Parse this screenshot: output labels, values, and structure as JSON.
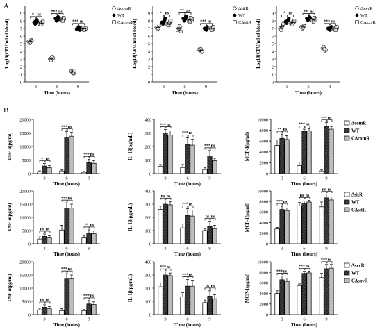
{
  "figure": {
    "panel_labels": [
      "A",
      "B"
    ],
    "colors": {
      "open": "#ffffff",
      "wt": "#000000",
      "comp": "#bdbdbd",
      "ko_marker": "#e6e6e6",
      "comp_marker": "#d9d9d9"
    }
  },
  "chart_data": [
    {
      "type": "scatter",
      "panel": "A",
      "id": "a1",
      "ylabel": "Log10(CFU/ml of blood)",
      "xlabel": "Time (hours)",
      "x": [
        "3",
        "6",
        "9"
      ],
      "ylim": [
        0,
        10
      ],
      "yticks": [
        0,
        1,
        2,
        3,
        4,
        5,
        6,
        7,
        8,
        9
      ],
      "series": [
        {
          "name": "ΔcomR",
          "marker": "open-circle",
          "values": [
            [
              5.3,
              5.5,
              5.1,
              5.4,
              5.2
            ],
            [
              3.0,
              3.3,
              2.8,
              3.1,
              3.2
            ],
            [
              1.4,
              1.1,
              1.3,
              1.5,
              1.2
            ]
          ]
        },
        {
          "name": "WT",
          "marker": "filled-circle",
          "values": [
            [
              7.8,
              8.1,
              7.6,
              7.9,
              8.0
            ],
            [
              8.3,
              8.5,
              8.0,
              8.2,
              8.4
            ],
            [
              6.9,
              7.1,
              7.0,
              6.8,
              7.2
            ]
          ]
        },
        {
          "name": "CΔcomR",
          "marker": "open-square",
          "values": [
            [
              7.6,
              7.8,
              7.7,
              7.9,
              7.5
            ],
            [
              8.2,
              8.4,
              8.1,
              8.3,
              8.0
            ],
            [
              7.0,
              6.9,
              7.1,
              7.0,
              6.8
            ]
          ]
        }
      ],
      "sig": [
        [
          "*",
          "ns"
        ],
        [
          "***",
          "ns"
        ],
        [
          "***",
          "ns"
        ]
      ]
    },
    {
      "type": "scatter",
      "panel": "A",
      "id": "a2",
      "ylabel": "Log10(CFU/ml of blood)",
      "xlabel": "Time (hours)",
      "x": [
        "3",
        "6",
        "9"
      ],
      "ylim": [
        0,
        10
      ],
      "yticks": [
        0,
        1,
        2,
        3,
        4,
        5,
        6,
        7,
        8,
        9
      ],
      "series": [
        {
          "name": "ΔsitR",
          "marker": "open-circle",
          "values": [
            [
              7.1,
              7.3,
              6.9,
              7.4,
              7.0
            ],
            [
              6.8,
              7.2,
              7.0,
              6.6,
              7.3
            ],
            [
              4.2,
              3.9,
              4.4,
              4.0,
              4.3
            ]
          ]
        },
        {
          "name": "WT",
          "marker": "filled-circle",
          "values": [
            [
              7.8,
              8.1,
              7.6,
              8.3,
              7.9
            ],
            [
              8.3,
              8.6,
              8.0,
              8.5,
              8.2
            ],
            [
              7.0,
              7.2,
              6.9,
              7.1,
              6.8
            ]
          ]
        },
        {
          "name": "CΔsitR",
          "marker": "open-square",
          "values": [
            [
              7.6,
              7.9,
              7.4,
              8.0,
              7.7
            ],
            [
              8.0,
              8.3,
              7.9,
              8.2,
              8.4
            ],
            [
              7.1,
              6.9,
              7.0,
              7.2,
              6.8
            ]
          ]
        }
      ],
      "sig": [
        [
          "*",
          "ns"
        ],
        [
          "**",
          "ns"
        ],
        [
          "***",
          "ns"
        ]
      ]
    },
    {
      "type": "scatter",
      "panel": "A",
      "id": "a3",
      "ylabel": "Log10(CFU/ml of blood)",
      "xlabel": "Time (hours)",
      "x": [
        "3",
        "6",
        "9"
      ],
      "ylim": [
        0,
        10
      ],
      "yticks": [
        0,
        1,
        2,
        3,
        4,
        5,
        6,
        7,
        8,
        9
      ],
      "series": [
        {
          "name": "ΔsxvR",
          "marker": "open-circle",
          "values": [
            [
              7.0,
              7.4,
              6.8,
              7.6,
              7.2
            ],
            [
              7.2,
              7.4,
              7.0,
              7.3,
              7.1
            ],
            [
              4.4,
              4.1,
              4.6,
              4.2,
              4.3
            ]
          ]
        },
        {
          "name": "WT",
          "marker": "filled-circle",
          "values": [
            [
              7.9,
              8.1,
              7.7,
              8.3,
              8.0
            ],
            [
              8.3,
              8.5,
              8.1,
              8.4,
              8.2
            ],
            [
              7.0,
              7.1,
              6.9,
              7.2,
              6.8
            ]
          ]
        },
        {
          "name": "CΔsxvR",
          "marker": "open-square",
          "values": [
            [
              7.7,
              7.9,
              7.5,
              8.0,
              7.8
            ],
            [
              8.1,
              8.3,
              7.9,
              8.2,
              8.4
            ],
            [
              7.0,
              7.2,
              6.9,
              7.1,
              6.8
            ]
          ]
        }
      ],
      "sig": [
        [
          "*",
          "ns"
        ],
        [
          "**",
          "ns"
        ],
        [
          "***",
          "ns"
        ]
      ]
    },
    {
      "type": "bar",
      "panel": "B",
      "id": "b11",
      "ylabel": "TNF-α(pg/ml)",
      "xlabel": "Time (hours)",
      "categories": [
        "3",
        "6",
        "9"
      ],
      "ylim": [
        0,
        20000
      ],
      "yticks": [
        0,
        5000,
        10000,
        15000,
        20000
      ],
      "series": [
        {
          "name": "ΔcomR",
          "values": [
            700,
            1000,
            500
          ],
          "errors": [
            300,
            500,
            300
          ]
        },
        {
          "name": "WT",
          "values": [
            2800,
            13500,
            4000
          ],
          "errors": [
            900,
            2000,
            1300
          ]
        },
        {
          "name": "CΔcomR",
          "values": [
            2200,
            13800,
            3800
          ],
          "errors": [
            800,
            1500,
            1000
          ]
        }
      ],
      "sig": [
        [
          "*",
          "ns"
        ],
        [
          "***",
          "ns"
        ],
        [
          "***",
          "ns"
        ]
      ]
    },
    {
      "type": "bar",
      "panel": "B",
      "id": "b12",
      "ylabel": "IL-1β(pg/mL)",
      "xlabel": "Time (hours)",
      "categories": [
        "3",
        "6",
        "9"
      ],
      "ylim": [
        0,
        400
      ],
      "yticks": [
        0,
        100,
        200,
        300,
        400
      ],
      "series": [
        {
          "name": "ΔcomR",
          "values": [
            55,
            45,
            30
          ],
          "errors": [
            12,
            22,
            15
          ]
        },
        {
          "name": "WT",
          "values": [
            300,
            215,
            130
          ],
          "errors": [
            25,
            50,
            40
          ]
        },
        {
          "name": "CΔcomR",
          "values": [
            285,
            210,
            95
          ],
          "errors": [
            30,
            45,
            18
          ]
        }
      ],
      "sig": [
        [
          "***",
          "ns"
        ],
        [
          "***",
          "ns"
        ],
        [
          "***",
          "ns"
        ]
      ]
    },
    {
      "type": "bar",
      "panel": "B",
      "id": "b13",
      "ylabel": "MCP-1(pg/ml)",
      "xlabel": "Time (hours)",
      "categories": [
        "3",
        "6",
        "9"
      ],
      "ylim": [
        0,
        10000
      ],
      "yticks": [
        0,
        2000,
        4000,
        6000,
        8000,
        10000
      ],
      "series": [
        {
          "name": "ΔcomR",
          "values": [
            5200,
            1500,
            500
          ],
          "errors": [
            1000,
            600,
            250
          ]
        },
        {
          "name": "WT",
          "values": [
            6500,
            7800,
            8700
          ],
          "errors": [
            800,
            400,
            700
          ]
        },
        {
          "name": "CΔcomR",
          "values": [
            6300,
            7900,
            8200
          ],
          "errors": [
            700,
            350,
            500
          ]
        }
      ],
      "sig": [
        [
          "**",
          "ns"
        ],
        [
          "***",
          "ns"
        ],
        [
          "***",
          "ns"
        ]
      ]
    },
    {
      "type": "bar",
      "panel": "B",
      "id": "b21",
      "ylabel": "TNF-α(pg/ml)",
      "xlabel": "Time (hours)",
      "categories": [
        "3",
        "6",
        "9"
      ],
      "ylim": [
        0,
        20000
      ],
      "yticks": [
        0,
        5000,
        10000,
        15000,
        20000
      ],
      "series": [
        {
          "name": "ΔsitR",
          "values": [
            1800,
            5200,
            2200
          ],
          "errors": [
            800,
            1800,
            900
          ]
        },
        {
          "name": "WT",
          "values": [
            2800,
            13500,
            4000
          ],
          "errors": [
            900,
            2000,
            1300
          ]
        },
        {
          "name": "CΔsitR",
          "values": [
            2200,
            13500,
            3800
          ],
          "errors": [
            800,
            1500,
            1000
          ]
        }
      ],
      "sig": [
        [
          "ns",
          "ns"
        ],
        [
          "***",
          "ns"
        ],
        [
          "*",
          "ns"
        ]
      ]
    },
    {
      "type": "bar",
      "panel": "B",
      "id": "b22",
      "ylabel": "IL-1β(pg/mL)",
      "xlabel": "Time (hours)",
      "categories": [
        "3",
        "6",
        "9"
      ],
      "ylim": [
        0,
        400
      ],
      "yticks": [
        0,
        100,
        200,
        300,
        400
      ],
      "series": [
        {
          "name": "ΔsitR",
          "values": [
            260,
            120,
            100
          ],
          "errors": [
            25,
            30,
            15
          ]
        },
        {
          "name": "WT",
          "values": [
            300,
            215,
            130
          ],
          "errors": [
            25,
            50,
            40
          ]
        },
        {
          "name": "CΔsitR",
          "values": [
            295,
            210,
            115
          ],
          "errors": [
            25,
            45,
            25
          ]
        }
      ],
      "sig": [
        [
          "ns",
          "ns"
        ],
        [
          "***",
          "ns"
        ],
        [
          "ns",
          "ns"
        ]
      ]
    },
    {
      "type": "bar",
      "panel": "B",
      "id": "b23",
      "ylabel": "MCP-1(pg/ml)",
      "xlabel": "Time (hours)",
      "categories": [
        "3",
        "6",
        "9"
      ],
      "ylim": [
        0,
        10000
      ],
      "yticks": [
        0,
        2000,
        4000,
        6000,
        8000,
        10000
      ],
      "series": [
        {
          "name": "ΔsitR",
          "values": [
            2800,
            7200,
            7000
          ],
          "errors": [
            300,
            600,
            900
          ]
        },
        {
          "name": "WT",
          "values": [
            6500,
            7700,
            8700
          ],
          "errors": [
            600,
            400,
            700
          ]
        },
        {
          "name": "CΔsitR",
          "values": [
            6300,
            7900,
            8300
          ],
          "errors": [
            500,
            350,
            600
          ]
        }
      ],
      "sig": [
        [
          "***",
          "ns"
        ],
        [
          "ns",
          "ns"
        ],
        [
          "ns",
          "ns"
        ]
      ]
    },
    {
      "type": "bar",
      "panel": "B",
      "id": "b31",
      "ylabel": "TNF-α(pg/ml)",
      "xlabel": "Time (hours)",
      "categories": [
        "3",
        "6",
        "9"
      ],
      "ylim": [
        0,
        20000
      ],
      "yticks": [
        0,
        5000,
        10000,
        15000,
        20000
      ],
      "series": [
        {
          "name": "ΔsxvR",
          "values": [
            1800,
            1500,
            1500
          ],
          "errors": [
            600,
            700,
            400
          ]
        },
        {
          "name": "WT",
          "values": [
            2800,
            13500,
            4000
          ],
          "errors": [
            900,
            2000,
            1300
          ]
        },
        {
          "name": "CΔsxvR",
          "values": [
            2200,
            13500,
            3800
          ],
          "errors": [
            800,
            1500,
            1000
          ]
        }
      ],
      "sig": [
        [
          "ns",
          "ns"
        ],
        [
          "***",
          "ns"
        ],
        [
          "***",
          "ns"
        ]
      ]
    },
    {
      "type": "bar",
      "panel": "B",
      "id": "b32",
      "ylabel": "IL-1β(pg/mL)",
      "xlabel": "Time (hours)",
      "categories": [
        "3",
        "6",
        "9"
      ],
      "ylim": [
        0,
        400
      ],
      "yticks": [
        0,
        100,
        200,
        300,
        400
      ],
      "series": [
        {
          "name": "ΔsxvR",
          "values": [
            210,
            135,
            90
          ],
          "errors": [
            30,
            30,
            20
          ]
        },
        {
          "name": "WT",
          "values": [
            300,
            215,
            140
          ],
          "errors": [
            25,
            50,
            40
          ]
        },
        {
          "name": "CΔsxvR",
          "values": [
            295,
            215,
            120
          ],
          "errors": [
            20,
            45,
            30
          ]
        }
      ],
      "sig": [
        [
          "***",
          "ns"
        ],
        [
          "***",
          "ns"
        ],
        [
          "ns",
          "ns"
        ]
      ]
    },
    {
      "type": "bar",
      "panel": "B",
      "id": "b33",
      "ylabel": "MCP-1(pg/ml)",
      "xlabel": "Time (hours)",
      "categories": [
        "3",
        "6",
        "9"
      ],
      "ylim": [
        0,
        10000
      ],
      "yticks": [
        0,
        2000,
        4000,
        6000,
        8000,
        10000
      ],
      "series": [
        {
          "name": "ΔsxvR",
          "values": [
            4000,
            5500,
            7000
          ],
          "errors": [
            500,
            300,
            800
          ]
        },
        {
          "name": "WT",
          "values": [
            6600,
            7800,
            8700
          ],
          "errors": [
            700,
            400,
            800
          ]
        },
        {
          "name": "CΔsxvR",
          "values": [
            6300,
            7900,
            8800
          ],
          "errors": [
            600,
            350,
            700
          ]
        }
      ],
      "sig": [
        [
          "***",
          "ns"
        ],
        [
          "***",
          "ns"
        ],
        [
          "***",
          "ns"
        ]
      ]
    }
  ]
}
